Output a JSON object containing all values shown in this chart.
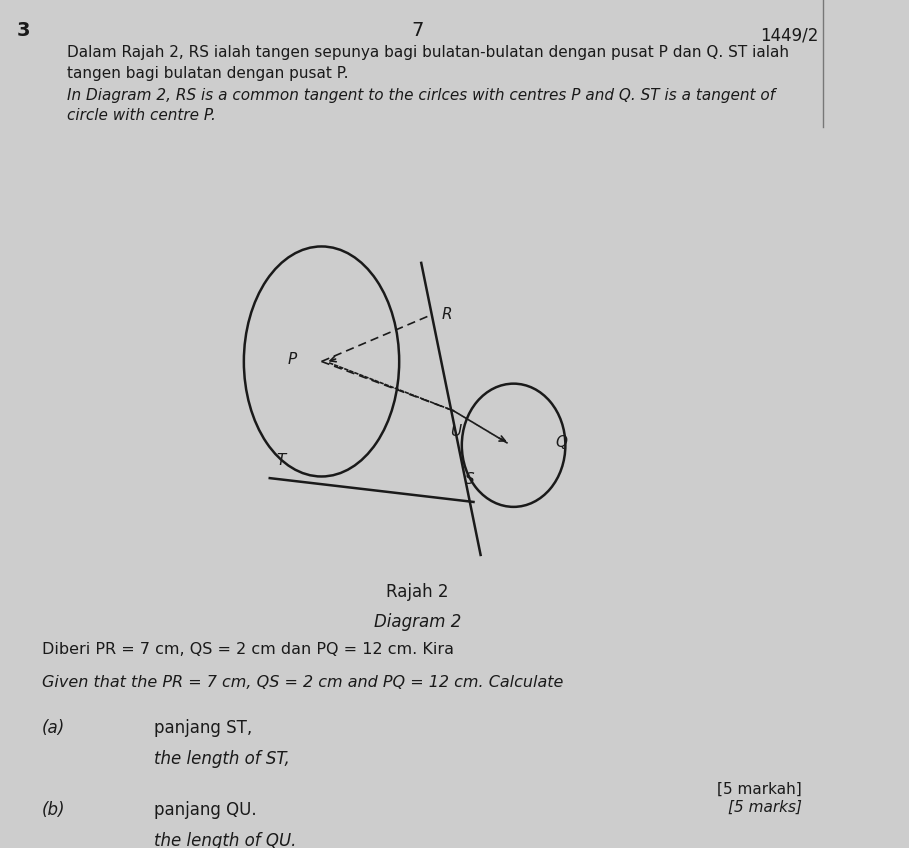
{
  "bg_color": "#cdcdcd",
  "page_number": "7",
  "question_number": "3",
  "ref_number": "1449/2",
  "malay_text_line1": "Dalam Rajah 2, RS ialah tangen sepunya bagi bulatan-bulatan dengan pusat P dan Q. ST ialah",
  "malay_text_line2": "tangen bagi bulatan dengan pusat P.",
  "english_text_line1": "In Diagram 2, RS is a common tangent to the cirlces with centres P and Q. ST is a tangent of",
  "english_text_line2": "circle with centre P.",
  "diagram_label_malay": "Rajah 2",
  "diagram_label_english": "Diagram 2",
  "given_malay": "Diberi PR = 7 cm, QS = 2 cm dan PQ = 12 cm. Kira",
  "given_english": "Given that the PR = 7 cm, QS = 2 cm and PQ = 12 cm. Calculate",
  "part_a_malay": "panjang ST,",
  "part_a_english": "the length of ST,",
  "part_b_malay": "panjang QU.",
  "part_b_english": "the length of QU.",
  "marks_malay": "[5 markah]",
  "marks_english": "[5 marks]",
  "text_color": "#1a1a1a",
  "line_color": "#1a1a1a"
}
